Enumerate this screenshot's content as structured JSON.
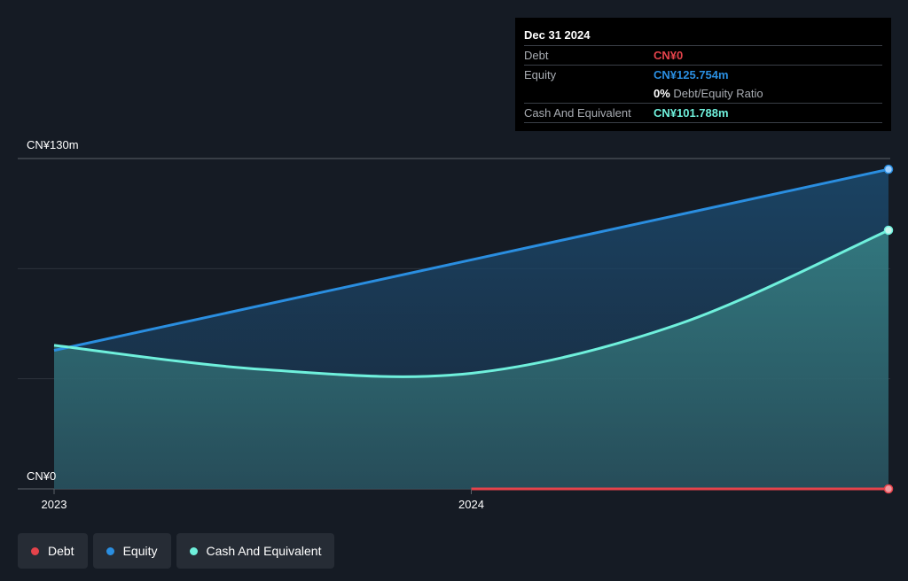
{
  "tooltip": {
    "date": "Dec 31 2024",
    "debt_label": "Debt",
    "debt_value": "CN¥0",
    "equity_label": "Equity",
    "equity_value": "CN¥125.754m",
    "ratio_pct": "0%",
    "ratio_label": "Debt/Equity Ratio",
    "cash_label": "Cash And Equivalent",
    "cash_value": "CN¥101.788m"
  },
  "legend": {
    "debt": "Debt",
    "equity": "Equity",
    "cash": "Cash And Equivalent"
  },
  "colors": {
    "background": "#151b24",
    "debt": "#e5434b",
    "equity": "#2a8ee0",
    "cash": "#6ff0dc",
    "grid": "#3a4048"
  },
  "chart_data": {
    "type": "area",
    "title": "",
    "xlabel": "",
    "ylabel": "",
    "ylim": [
      0,
      130
    ],
    "y_tick_labels": [
      "CN¥0",
      "CN¥130m"
    ],
    "x_ticks": [
      {
        "label": "2023",
        "t": 2023.0
      },
      {
        "label": "2024",
        "t": 2024.0
      }
    ],
    "x_range": [
      2023.0,
      2025.0
    ],
    "series": [
      {
        "name": "Equity",
        "key": "equity",
        "points": [
          [
            2023.0,
            54.5
          ],
          [
            2025.0,
            125.754
          ]
        ]
      },
      {
        "name": "Cash And Equivalent",
        "key": "cash",
        "points": [
          [
            2023.0,
            56.5
          ],
          [
            2023.5,
            47.0
          ],
          [
            2024.0,
            45.5
          ],
          [
            2024.5,
            65.0
          ],
          [
            2025.0,
            101.788
          ]
        ]
      },
      {
        "name": "Debt",
        "key": "debt",
        "points": [
          [
            2024.0,
            0
          ],
          [
            2025.0,
            0
          ]
        ]
      }
    ]
  }
}
